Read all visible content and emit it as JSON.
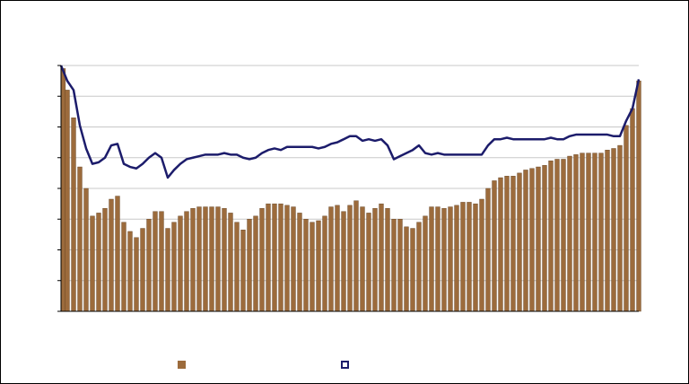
{
  "chart_data": {
    "type": "bar",
    "ylim": [
      0,
      8
    ],
    "yticks": [
      0,
      1,
      2,
      3,
      4,
      5,
      6,
      7,
      8
    ],
    "grid": true,
    "series": [
      {
        "type": "bar",
        "color": "#9c6b3c",
        "values": [
          7.9,
          7.2,
          6.3,
          4.7,
          4.0,
          3.1,
          3.2,
          3.35,
          3.65,
          3.75,
          2.9,
          2.6,
          2.4,
          2.7,
          3.0,
          3.25,
          3.25,
          2.7,
          2.9,
          3.1,
          3.25,
          3.35,
          3.4,
          3.4,
          3.4,
          3.4,
          3.35,
          3.2,
          2.9,
          2.65,
          3.0,
          3.1,
          3.35,
          3.5,
          3.5,
          3.5,
          3.45,
          3.4,
          3.2,
          3.0,
          2.9,
          2.95,
          3.1,
          3.4,
          3.45,
          3.25,
          3.45,
          3.6,
          3.4,
          3.2,
          3.35,
          3.5,
          3.35,
          3.0,
          3.0,
          2.75,
          2.7,
          2.9,
          3.1,
          3.4,
          3.4,
          3.35,
          3.4,
          3.45,
          3.55,
          3.55,
          3.5,
          3.65,
          4.0,
          4.25,
          4.35,
          4.4,
          4.4,
          4.5,
          4.6,
          4.65,
          4.7,
          4.75,
          4.9,
          4.95,
          4.95,
          5.05,
          5.1,
          5.15,
          5.15,
          5.15,
          5.15,
          5.25,
          5.3,
          5.4,
          6.05,
          6.6,
          7.5
        ]
      },
      {
        "type": "line",
        "color": "#1c1c6b",
        "values": [
          8.0,
          7.5,
          7.2,
          6.05,
          5.3,
          4.8,
          4.85,
          5.0,
          5.4,
          5.45,
          4.8,
          4.7,
          4.65,
          4.8,
          5.0,
          5.15,
          5.0,
          4.35,
          4.6,
          4.8,
          4.95,
          5.0,
          5.05,
          5.1,
          5.1,
          5.1,
          5.15,
          5.1,
          5.1,
          5.0,
          4.95,
          5.0,
          5.15,
          5.25,
          5.3,
          5.25,
          5.35,
          5.35,
          5.35,
          5.35,
          5.35,
          5.3,
          5.35,
          5.45,
          5.5,
          5.6,
          5.7,
          5.7,
          5.55,
          5.6,
          5.55,
          5.6,
          5.4,
          4.95,
          5.05,
          5.15,
          5.25,
          5.4,
          5.15,
          5.1,
          5.15,
          5.1,
          5.1,
          5.1,
          5.1,
          5.1,
          5.1,
          5.1,
          5.4,
          5.6,
          5.6,
          5.65,
          5.6,
          5.6,
          5.6,
          5.6,
          5.6,
          5.6,
          5.65,
          5.6,
          5.6,
          5.7,
          5.75,
          5.75,
          5.75,
          5.75,
          5.75,
          5.75,
          5.7,
          5.7,
          6.2,
          6.6,
          7.55
        ]
      }
    ]
  }
}
